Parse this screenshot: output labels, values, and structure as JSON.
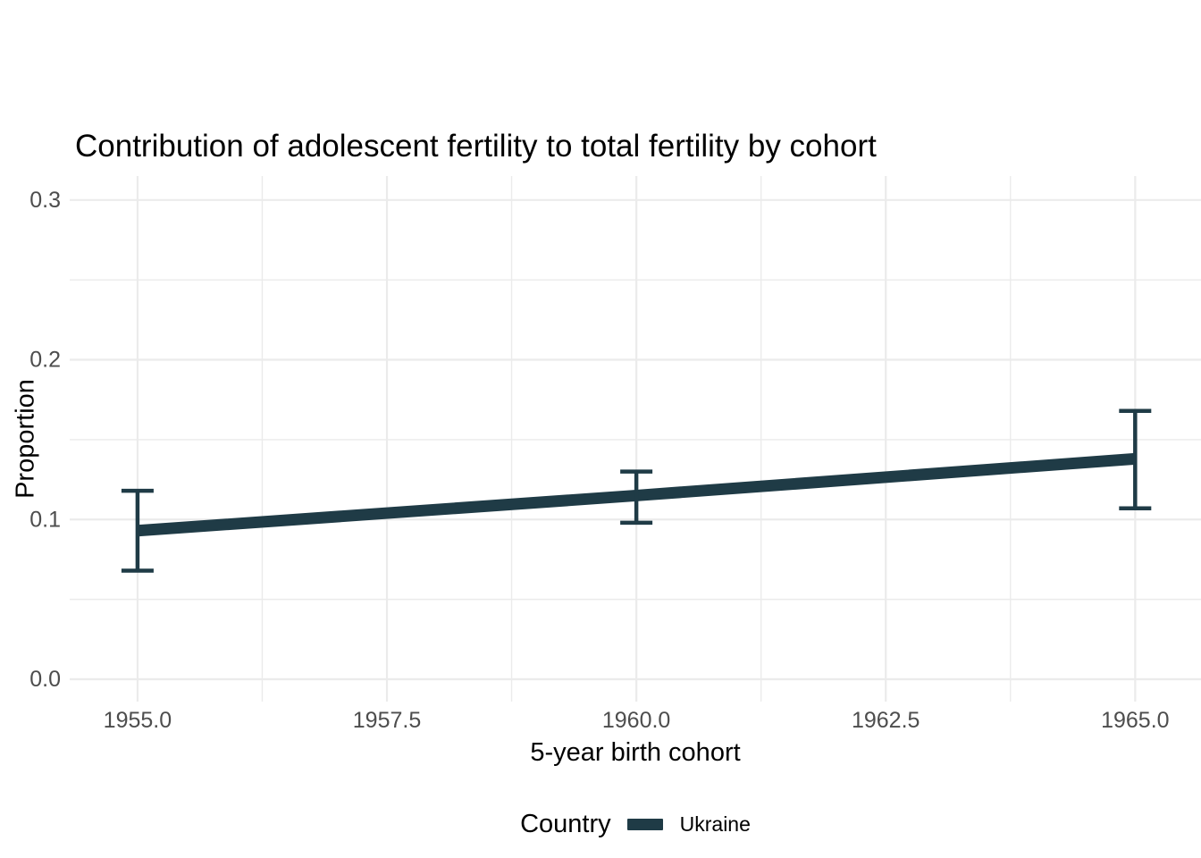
{
  "chart_data": {
    "type": "line",
    "title": "Contribution of adolescent fertility to total fertility by cohort",
    "xlabel": "5-year birth cohort",
    "ylabel": "Proportion",
    "x": [
      1955,
      1960,
      1965
    ],
    "series": [
      {
        "name": "Ukraine",
        "values": [
          0.093,
          0.115,
          0.138
        ],
        "ci_lower": [
          0.068,
          0.098,
          0.107
        ],
        "ci_upper": [
          0.118,
          0.13,
          0.168
        ],
        "color": "#1f3b46"
      }
    ],
    "x_ticks": {
      "values": [
        1955,
        1957.5,
        1960,
        1962.5,
        1965
      ],
      "labels": [
        "1955.0",
        "1957.5",
        "1960.0",
        "1962.5",
        "1965.0"
      ]
    },
    "y_ticks": {
      "values": [
        0,
        0.1,
        0.2,
        0.3
      ],
      "labels": [
        "0.0",
        "0.1",
        "0.2",
        "0.3"
      ]
    },
    "x_minor": [
      1956.25,
      1958.75,
      1961.25,
      1963.75
    ],
    "y_minor": [
      0.05,
      0.15,
      0.25
    ],
    "xlim": [
      1954.32,
      1965.66
    ],
    "ylim": [
      -0.014,
      0.315
    ],
    "grid": true,
    "legend": {
      "title": "Country",
      "position": "bottom",
      "items": [
        {
          "label": "Ukraine",
          "color": "#1f3b46"
        }
      ]
    }
  },
  "colors": {
    "background": "#ffffff",
    "grid": "#ebebeb",
    "tick_label": "#4d4d4d",
    "text": "#000000"
  }
}
